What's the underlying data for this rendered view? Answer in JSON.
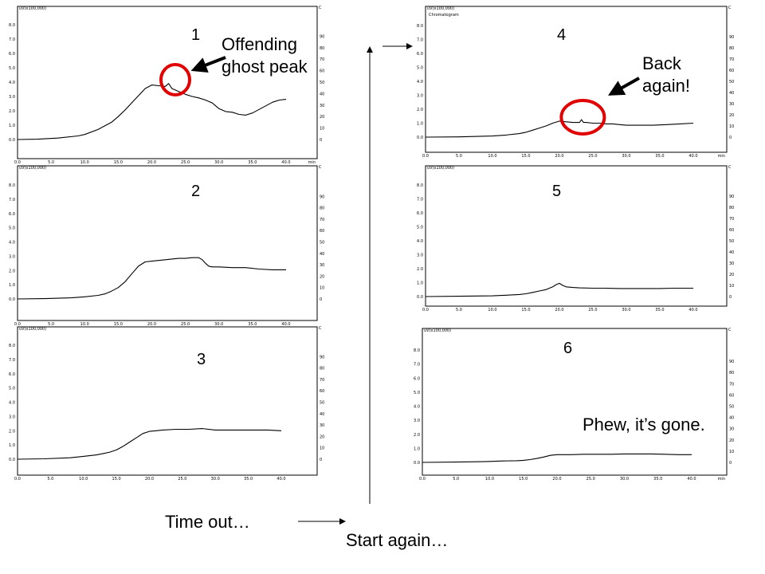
{
  "chart_data": [
    {
      "type": "line",
      "panel_label": "1",
      "y_unit_label": "uV(x100,000)",
      "y2_unit_label": "C",
      "x_unit_label": "min",
      "xlim": [
        0,
        40
      ],
      "ylim": [
        0,
        8
      ],
      "y2lim": [
        0,
        100
      ],
      "x_ticks": [
        "0.0",
        "5.0",
        "10.0",
        "15.0",
        "20.0",
        "25.0",
        "30.0",
        "35.0",
        "40.0"
      ],
      "y_ticks": [
        "0.0",
        "1.0",
        "2.0",
        "3.0",
        "4.0",
        "5.0",
        "6.0",
        "7.0",
        "8.0"
      ],
      "y2_ticks": [
        "0",
        "10",
        "20",
        "30",
        "40",
        "50",
        "60",
        "70",
        "80",
        "90"
      ],
      "grid": false,
      "series": [
        {
          "x": [
            0,
            3,
            6,
            9,
            10,
            12,
            14,
            15,
            16,
            17,
            18,
            19,
            20,
            21,
            22,
            22.5,
            23,
            23.5,
            24,
            25,
            26,
            27,
            28,
            29,
            30,
            31,
            32,
            33,
            34,
            35,
            36,
            37,
            38,
            39,
            40
          ],
          "y": [
            0,
            0.02,
            0.1,
            0.25,
            0.35,
            0.7,
            1.2,
            1.6,
            2.05,
            2.55,
            3.05,
            3.55,
            3.8,
            3.75,
            3.7,
            3.9,
            3.55,
            3.45,
            3.35,
            3.15,
            3.0,
            2.9,
            2.75,
            2.55,
            2.15,
            1.95,
            1.9,
            1.75,
            1.7,
            1.85,
            2.1,
            2.35,
            2.6,
            2.75,
            2.8
          ]
        }
      ],
      "ghost_peak_x": 23.5
    },
    {
      "type": "line",
      "panel_label": "2",
      "y_unit_label": "uV(x100,000)",
      "y2_unit_label": "C",
      "x_unit_label": "",
      "xlim": [
        0,
        40
      ],
      "ylim": [
        0,
        8
      ],
      "y2lim": [
        0,
        100
      ],
      "x_ticks": [
        "0.0",
        "5.0",
        "10.0",
        "15.0",
        "20.0",
        "25.0",
        "30.0",
        "35.0",
        "40.0"
      ],
      "y_ticks": [
        "0.0",
        "1.0",
        "2.0",
        "3.0",
        "4.0",
        "5.0",
        "6.0",
        "7.0",
        "8.0"
      ],
      "y2_ticks": [
        "0",
        "10",
        "20",
        "30",
        "40",
        "50",
        "60",
        "70",
        "80",
        "90"
      ],
      "grid": false,
      "series": [
        {
          "x": [
            0,
            4,
            8,
            10,
            12,
            13,
            14,
            15,
            16,
            17,
            18,
            19,
            20,
            21,
            22,
            23,
            24,
            25,
            26,
            27,
            27.5,
            28,
            28.5,
            29,
            30,
            32,
            34,
            36,
            38,
            40
          ],
          "y": [
            0,
            0.02,
            0.08,
            0.15,
            0.25,
            0.35,
            0.55,
            0.8,
            1.2,
            1.75,
            2.3,
            2.6,
            2.65,
            2.7,
            2.75,
            2.8,
            2.85,
            2.85,
            2.9,
            2.9,
            2.75,
            2.5,
            2.3,
            2.25,
            2.25,
            2.2,
            2.2,
            2.1,
            2.05,
            2.05
          ]
        }
      ]
    },
    {
      "type": "line",
      "panel_label": "3",
      "y_unit_label": "uV(x100,000)",
      "y2_unit_label": "C",
      "x_unit_label": "",
      "xlim": [
        0,
        40
      ],
      "ylim": [
        0,
        8
      ],
      "y2lim": [
        0,
        100
      ],
      "x_ticks": [
        "0.0",
        "5.0",
        "10.0",
        "15.0",
        "20.0",
        "25.0",
        "30.0",
        "35.0",
        "40.0"
      ],
      "y_ticks": [
        "0.0",
        "1.0",
        "2.0",
        "3.0",
        "4.0",
        "5.0",
        "6.0",
        "7.0",
        "8.0"
      ],
      "y2_ticks": [
        "0",
        "10",
        "20",
        "30",
        "40",
        "50",
        "60",
        "70",
        "80",
        "90"
      ],
      "grid": false,
      "series": [
        {
          "x": [
            0,
            4,
            8,
            10,
            12,
            13,
            14,
            15,
            16,
            17,
            18,
            19,
            20,
            21,
            22,
            24,
            26,
            28,
            30,
            32,
            34,
            36,
            38,
            40
          ],
          "y": [
            0,
            0.03,
            0.1,
            0.2,
            0.3,
            0.4,
            0.5,
            0.65,
            0.9,
            1.2,
            1.5,
            1.8,
            1.95,
            2.0,
            2.05,
            2.1,
            2.1,
            2.15,
            2.05,
            2.05,
            2.05,
            2.05,
            2.05,
            2.0
          ]
        }
      ]
    },
    {
      "type": "line",
      "panel_label": "4",
      "y_unit_label": "uV(x100,000)",
      "y2_unit_label": "C",
      "x_unit_label": "min",
      "legend_text": "Chromatogram",
      "xlim": [
        0,
        40
      ],
      "ylim": [
        0,
        8
      ],
      "y2lim": [
        0,
        100
      ],
      "x_ticks": [
        "0.0",
        "5.0",
        "10.0",
        "15.0",
        "20.0",
        "25.0",
        "30.0",
        "35.0",
        "40.0"
      ],
      "y_ticks": [
        "0.0",
        "1.0",
        "2.0",
        "3.0",
        "4.0",
        "5.0",
        "6.0",
        "7.0",
        "8.0"
      ],
      "y2_ticks": [
        "0",
        "10",
        "20",
        "30",
        "40",
        "50",
        "60",
        "70",
        "80",
        "90"
      ],
      "grid": false,
      "series": [
        {
          "x": [
            0,
            5,
            10,
            12,
            14,
            15,
            16,
            17,
            18,
            19,
            20,
            21,
            22,
            23,
            23.3,
            23.6,
            24,
            25,
            26,
            27,
            28,
            29,
            30,
            32,
            34,
            36,
            38,
            40
          ],
          "y": [
            0,
            0.02,
            0.08,
            0.15,
            0.25,
            0.35,
            0.5,
            0.65,
            0.8,
            1.0,
            1.15,
            1.1,
            1.05,
            1.05,
            1.25,
            1.05,
            1.05,
            1.0,
            1.0,
            0.95,
            0.95,
            0.9,
            0.85,
            0.85,
            0.85,
            0.9,
            0.95,
            1.0
          ]
        }
      ],
      "ghost_peak_x": 23.5
    },
    {
      "type": "line",
      "panel_label": "5",
      "y_unit_label": "uV(x100,000)",
      "y2_unit_label": "C",
      "x_unit_label": "",
      "xlim": [
        0,
        40
      ],
      "ylim": [
        0,
        8
      ],
      "y2lim": [
        0,
        100
      ],
      "x_ticks": [
        "0.0",
        "5.0",
        "10.0",
        "15.0",
        "20.0",
        "25.0",
        "30.0",
        "35.0",
        "40.0"
      ],
      "y_ticks": [
        "0.0",
        "1.0",
        "2.0",
        "3.0",
        "4.0",
        "5.0",
        "6.0",
        "7.0",
        "8.0"
      ],
      "y2_ticks": [
        "0",
        "10",
        "20",
        "30",
        "40",
        "50",
        "60",
        "70",
        "80",
        "90"
      ],
      "grid": false,
      "series": [
        {
          "x": [
            0,
            5,
            10,
            12,
            14,
            15,
            16,
            17,
            18,
            19,
            19.5,
            20,
            20.5,
            21,
            22,
            23,
            25,
            27,
            29,
            31,
            33,
            35,
            37,
            40
          ],
          "y": [
            0,
            0.02,
            0.05,
            0.1,
            0.15,
            0.2,
            0.3,
            0.4,
            0.5,
            0.7,
            0.85,
            0.95,
            0.8,
            0.7,
            0.65,
            0.62,
            0.6,
            0.6,
            0.58,
            0.58,
            0.58,
            0.58,
            0.6,
            0.6
          ]
        }
      ]
    },
    {
      "type": "line",
      "panel_label": "6",
      "y_unit_label": "uV(x100,000)",
      "y2_unit_label": "C",
      "x_unit_label": "min",
      "xlim": [
        0,
        40
      ],
      "ylim": [
        0,
        8
      ],
      "y2lim": [
        0,
        100
      ],
      "x_ticks": [
        "0.0",
        "5.0",
        "10.0",
        "15.0",
        "20.0",
        "25.0",
        "30.0",
        "35.0",
        "40.0"
      ],
      "y_ticks": [
        "0.0",
        "1.0",
        "2.0",
        "3.0",
        "4.0",
        "5.0",
        "6.0",
        "7.0",
        "8.0"
      ],
      "y2_ticks": [
        "0",
        "10",
        "20",
        "30",
        "40",
        "50",
        "60",
        "70",
        "80",
        "90"
      ],
      "grid": false,
      "series": [
        {
          "x": [
            0,
            5,
            9,
            10,
            12,
            14,
            15,
            16,
            17,
            18,
            19,
            20,
            21,
            22,
            24,
            26,
            28,
            30,
            32,
            34,
            36,
            38,
            40
          ],
          "y": [
            0,
            0.02,
            0.05,
            0.07,
            0.1,
            0.12,
            0.15,
            0.2,
            0.28,
            0.38,
            0.5,
            0.55,
            0.55,
            0.55,
            0.58,
            0.58,
            0.58,
            0.6,
            0.6,
            0.6,
            0.58,
            0.55,
            0.55
          ]
        }
      ]
    }
  ],
  "annotations": {
    "panel1": "Offending\nghost peak",
    "panel4": "Back\nagain!",
    "panel6": "Phew, it’s gone.",
    "time_out": "Time out…",
    "start_again": "Start again…"
  },
  "colors": {
    "trace": "#000000",
    "circle": "#e00000",
    "frame": "#000000",
    "background": "#ffffff"
  }
}
